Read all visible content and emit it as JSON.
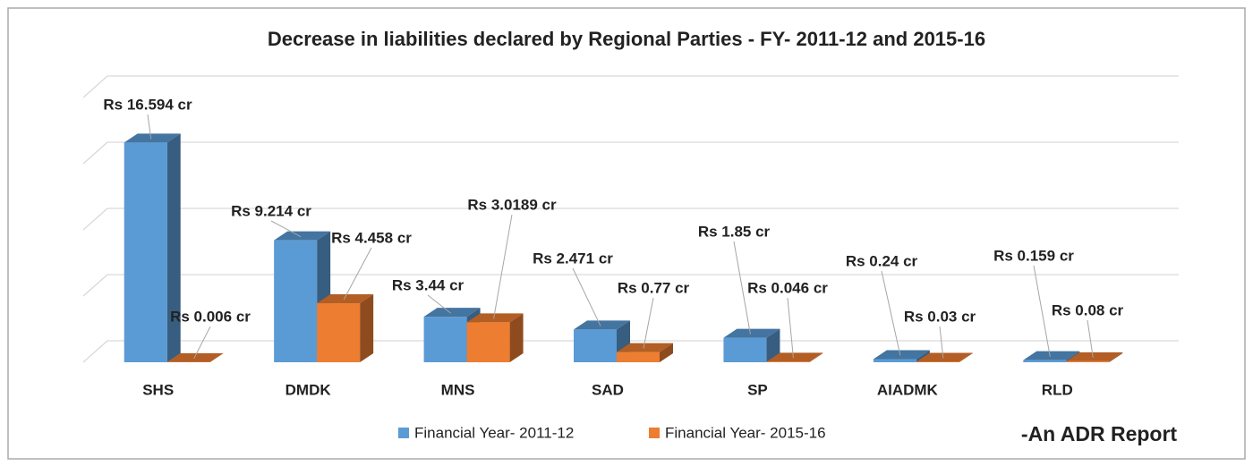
{
  "chart_data": {
    "type": "bar3d",
    "title": "Decrease in liabilities declared by Regional Parties - FY- 2011-12 and 2015-16",
    "categories": [
      "SHS",
      "DMDK",
      "MNS",
      "SAD",
      "SP",
      "AIADMK",
      "RLD"
    ],
    "series": [
      {
        "name": "Financial Year- 2011-12",
        "color": "#5b9bd5",
        "values": [
          16.594,
          9.214,
          3.44,
          2.471,
          1.85,
          0.24,
          0.159
        ],
        "value_labels": [
          "Rs 16.594 cr",
          "Rs 9.214 cr",
          "Rs 3.44 cr",
          "Rs 2.471 cr",
          "Rs 1.85 cr",
          "Rs 0.24 cr",
          "Rs 0.159 cr"
        ]
      },
      {
        "name": "Financial Year- 2015-16",
        "color": "#ed7d31",
        "values": [
          0.006,
          4.458,
          3.0189,
          0.77,
          0.046,
          0.03,
          0.08
        ],
        "value_labels": [
          "Rs 0.006 cr",
          "Rs 4.458 cr",
          "Rs 3.0189 cr",
          "Rs 0.77 cr",
          "Rs 0.046 cr",
          "Rs 0.03 cr",
          "Rs 0.08 cr"
        ]
      }
    ],
    "ylim": [
      0,
      20
    ],
    "yticks": [
      0,
      5,
      10,
      15,
      20
    ],
    "grid": true,
    "legend": "bottom",
    "annotation": "-An ADR Report"
  }
}
